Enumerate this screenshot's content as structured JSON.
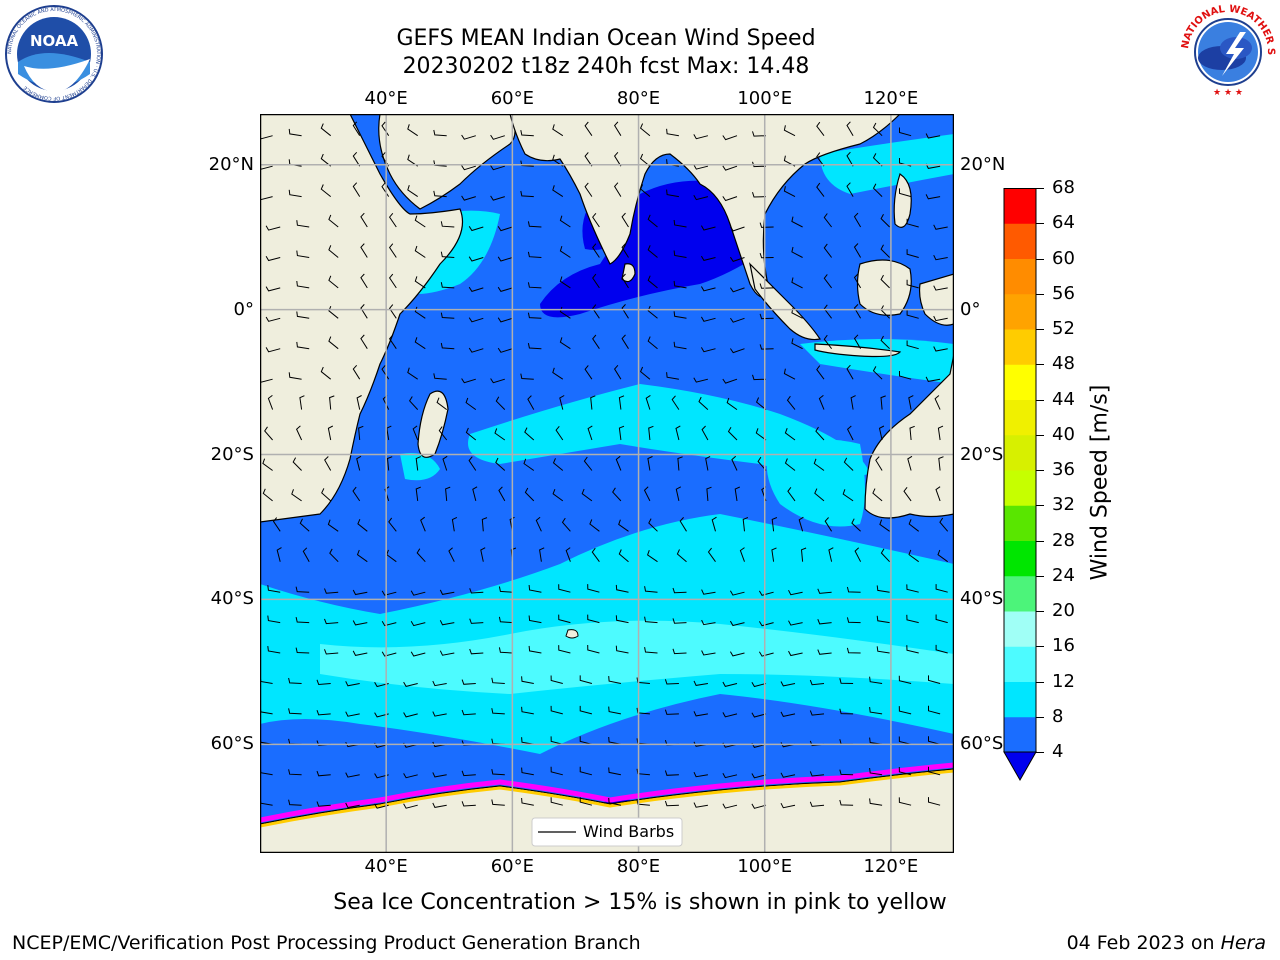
{
  "header": {
    "title_line1": "GEFS MEAN Indian Ocean Wind Speed",
    "title_line2": "20230202 t18z 240h fcst   Max: 14.48"
  },
  "logos": {
    "left": {
      "name": "noaa-logo",
      "text": "NOAA",
      "ring_text": "NATIONAL OCEANIC AND ATMOSPHERIC ADMINISTRATION · U.S. DEPARTMENT OF COMMERCE"
    },
    "right": {
      "name": "nws-logo",
      "ring_text": "NATIONAL WEATHER SERVICE"
    }
  },
  "map": {
    "projection": "cylindrical",
    "lon_range": [
      20,
      130
    ],
    "lat_range": [
      -75,
      27
    ],
    "lon_ticks": [
      {
        "value": 40,
        "label": "40°E"
      },
      {
        "value": 60,
        "label": "60°E"
      },
      {
        "value": 80,
        "label": "80°E"
      },
      {
        "value": 100,
        "label": "100°E"
      },
      {
        "value": 120,
        "label": "120°E"
      }
    ],
    "lat_ticks": [
      {
        "value": 20,
        "label": "20°N"
      },
      {
        "value": 0,
        "label": "0°"
      },
      {
        "value": -20,
        "label": "20°S"
      },
      {
        "value": -40,
        "label": "40°S"
      },
      {
        "value": -60,
        "label": "60°S"
      }
    ],
    "legend_label": "Wind Barbs",
    "land_color": "#efeedd",
    "sea_ice_colors": [
      "#ff00ff",
      "#ff88cc",
      "#ffcc00",
      "#ffff66"
    ]
  },
  "colorbar": {
    "label": "Wind Speed [m/s]",
    "ticks": [
      "4",
      "8",
      "12",
      "16",
      "20",
      "24",
      "28",
      "32",
      "36",
      "40",
      "44",
      "48",
      "52",
      "56",
      "60",
      "64",
      "68"
    ],
    "bins": [
      {
        "from": 4,
        "to": 8,
        "color": "#1a6dff"
      },
      {
        "from": 8,
        "to": 12,
        "color": "#00e6ff"
      },
      {
        "from": 12,
        "to": 16,
        "color": "#4dfbff"
      },
      {
        "from": 16,
        "to": 20,
        "color": "#a0fff6"
      },
      {
        "from": 20,
        "to": 24,
        "color": "#4cf47a"
      },
      {
        "from": 24,
        "to": 28,
        "color": "#00e600"
      },
      {
        "from": 28,
        "to": 32,
        "color": "#59e600"
      },
      {
        "from": 32,
        "to": 36,
        "color": "#c6ff00"
      },
      {
        "from": 36,
        "to": 40,
        "color": "#d7f000"
      },
      {
        "from": 40,
        "to": 44,
        "color": "#f0f000"
      },
      {
        "from": 44,
        "to": 48,
        "color": "#ffff00"
      },
      {
        "from": 48,
        "to": 52,
        "color": "#ffcc00"
      },
      {
        "from": 52,
        "to": 56,
        "color": "#ffa300"
      },
      {
        "from": 56,
        "to": 60,
        "color": "#ff8c00"
      },
      {
        "from": 60,
        "to": 64,
        "color": "#ff5a00"
      },
      {
        "from": 64,
        "to": 68,
        "color": "#ff0000"
      }
    ],
    "under_color": "#0000ee"
  },
  "caption": "Sea Ice Concentration > 15% is shown in pink to yellow",
  "footer": {
    "left": "NCEP/EMC/Verification Post Processing Product Generation Branch",
    "date": "04 Feb 2023 on ",
    "machine": "Hera"
  }
}
